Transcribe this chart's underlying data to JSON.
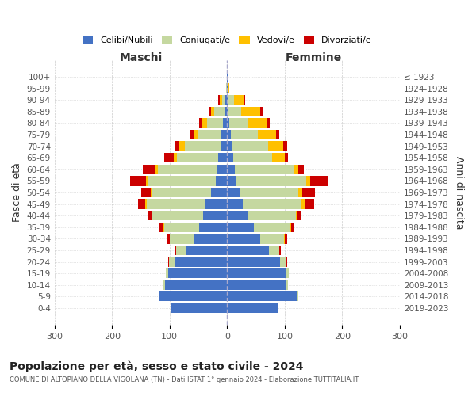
{
  "age_groups": [
    "0-4",
    "5-9",
    "10-14",
    "15-19",
    "20-24",
    "25-29",
    "30-34",
    "35-39",
    "40-44",
    "45-49",
    "50-54",
    "55-59",
    "60-64",
    "65-69",
    "70-74",
    "75-79",
    "80-84",
    "85-89",
    "90-94",
    "95-99",
    "100+"
  ],
  "birth_years": [
    "2019-2023",
    "2014-2018",
    "2009-2013",
    "2004-2008",
    "1999-2003",
    "1994-1998",
    "1989-1993",
    "1984-1988",
    "1979-1983",
    "1974-1978",
    "1969-1973",
    "1964-1968",
    "1959-1963",
    "1954-1958",
    "1949-1953",
    "1944-1948",
    "1939-1943",
    "1934-1938",
    "1929-1933",
    "1924-1928",
    "≤ 1923"
  ],
  "maschi_celibi": [
    98,
    118,
    108,
    102,
    92,
    72,
    58,
    48,
    42,
    38,
    28,
    20,
    18,
    15,
    12,
    10,
    7,
    4,
    3,
    1,
    1
  ],
  "maschi_coniugati": [
    0,
    1,
    3,
    4,
    9,
    16,
    42,
    62,
    88,
    102,
    102,
    118,
    102,
    72,
    62,
    42,
    28,
    18,
    6,
    1,
    0
  ],
  "maschi_vedovi": [
    0,
    0,
    0,
    0,
    0,
    0,
    0,
    1,
    2,
    2,
    3,
    3,
    4,
    6,
    9,
    6,
    9,
    6,
    4,
    0,
    0
  ],
  "maschi_divorziati": [
    0,
    0,
    0,
    0,
    2,
    3,
    4,
    6,
    6,
    13,
    16,
    27,
    22,
    16,
    9,
    6,
    4,
    3,
    2,
    0,
    0
  ],
  "femmine_nubili": [
    88,
    122,
    102,
    102,
    92,
    72,
    57,
    47,
    37,
    27,
    22,
    16,
    13,
    11,
    9,
    6,
    4,
    3,
    3,
    1,
    1
  ],
  "femmine_coniugate": [
    0,
    2,
    4,
    5,
    11,
    19,
    42,
    62,
    82,
    102,
    102,
    122,
    102,
    67,
    62,
    47,
    32,
    22,
    9,
    1,
    0
  ],
  "femmine_vedove": [
    0,
    0,
    0,
    0,
    0,
    0,
    1,
    2,
    3,
    6,
    6,
    6,
    9,
    22,
    27,
    32,
    32,
    32,
    16,
    2,
    0
  ],
  "femmine_divorziate": [
    0,
    0,
    0,
    0,
    2,
    3,
    4,
    6,
    6,
    16,
    22,
    32,
    9,
    6,
    6,
    6,
    6,
    6,
    3,
    0,
    0
  ],
  "colors": {
    "celibi": "#4472c4",
    "coniugati": "#c5d8a0",
    "vedovi": "#ffc000",
    "divorziati": "#cc0000"
  },
  "title": "Popolazione per età, sesso e stato civile - 2024",
  "subtitle": "COMUNE DI ALTOPIANO DELLA VIGOLANA (TN) - Dati ISTAT 1° gennaio 2024 - Elaborazione TUTTITALIA.IT",
  "xlabel_left": "Maschi",
  "xlabel_right": "Femmine",
  "ylabel_left": "Fasce di età",
  "ylabel_right": "Anni di nascita",
  "xlim": 300,
  "legend_labels": [
    "Celibi/Nubili",
    "Coniugati/e",
    "Vedovi/e",
    "Divorziati/e"
  ],
  "background_color": "#ffffff",
  "grid_color": "#cccccc",
  "text_color": "#555555",
  "header_color": "#333333"
}
